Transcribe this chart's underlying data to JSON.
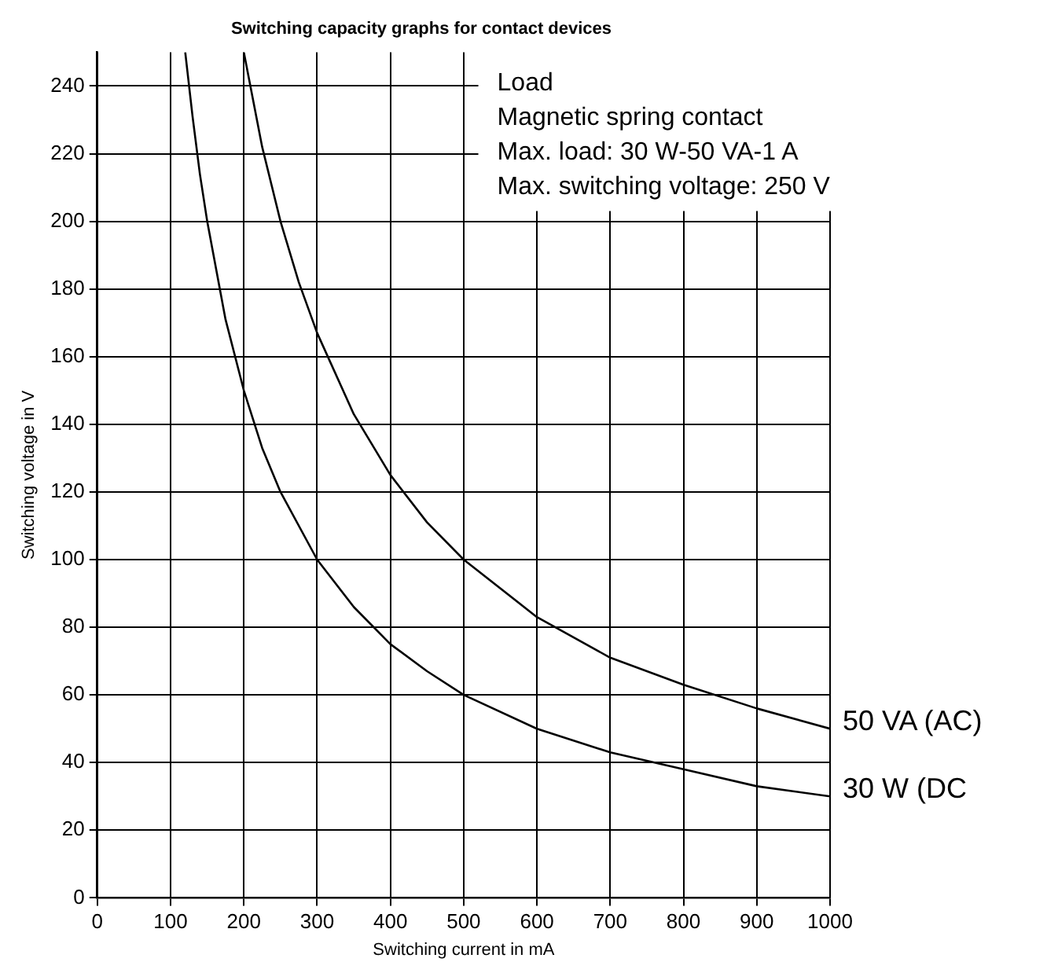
{
  "chart_data": {
    "type": "line",
    "title": "Switching capacity graphs for contact devices",
    "xlabel": "Switching current in mA",
    "ylabel": "Switching voltage in V",
    "xlim": [
      0,
      1000
    ],
    "xticks": [
      0,
      100,
      200,
      300,
      400,
      500,
      600,
      700,
      800,
      900,
      1000
    ],
    "ylim": [
      0,
      250
    ],
    "yticks": [
      0,
      20,
      40,
      60,
      80,
      100,
      120,
      140,
      160,
      180,
      200,
      220,
      240
    ],
    "grid": true,
    "legend": false,
    "marker": "none",
    "line_style": "solid",
    "annotations": [
      "Load",
      "Magnetic spring contact",
      "Max. load: 30 W-50 VA-1 A",
      "Max. switching voltage: 250 V"
    ],
    "series": [
      {
        "name": "50 VA (AC)",
        "color": "#000000",
        "x": [
          200,
          225,
          250,
          275,
          300,
          350,
          400,
          450,
          500,
          600,
          700,
          800,
          900,
          1000
        ],
        "values": [
          250,
          222,
          200,
          182,
          167,
          143,
          125,
          111,
          100,
          83,
          71,
          63,
          56,
          50
        ]
      },
      {
        "name": "30 W (DC",
        "color": "#000000",
        "x": [
          120,
          130,
          140,
          150,
          175,
          200,
          225,
          250,
          300,
          350,
          400,
          450,
          500,
          600,
          700,
          800,
          900,
          1000
        ],
        "values": [
          250,
          231,
          214,
          200,
          171,
          150,
          133,
          120,
          100,
          86,
          75,
          67,
          60,
          50,
          43,
          38,
          33,
          30
        ]
      }
    ]
  }
}
